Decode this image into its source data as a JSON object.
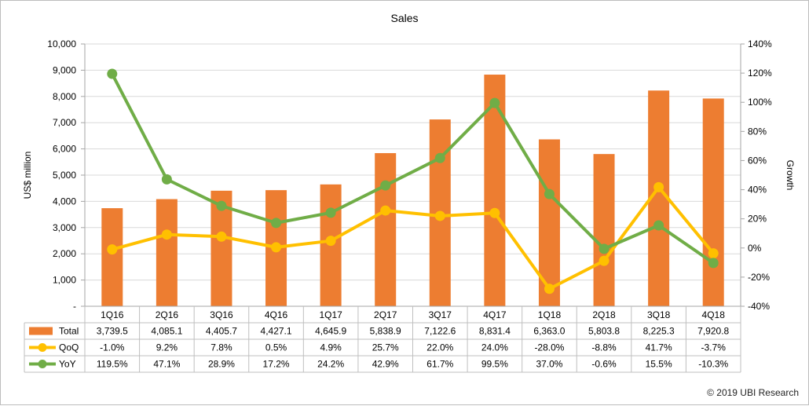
{
  "chart_data": {
    "type": "bar",
    "title": "Sales",
    "categories": [
      "1Q16",
      "2Q16",
      "3Q16",
      "4Q16",
      "1Q17",
      "2Q17",
      "3Q17",
      "4Q17",
      "1Q18",
      "2Q18",
      "3Q18",
      "4Q18"
    ],
    "left_axis": {
      "label": "US$ million",
      "ylim": [
        0,
        10000
      ],
      "ticks": [
        "-",
        "1,000",
        "2,000",
        "3,000",
        "4,000",
        "5,000",
        "6,000",
        "7,000",
        "8,000",
        "9,000",
        "10,000"
      ]
    },
    "right_axis": {
      "label": "Growth",
      "ylim": [
        -40,
        140
      ],
      "ticks": [
        "-40%",
        "-20%",
        "0%",
        "20%",
        "40%",
        "60%",
        "80%",
        "100%",
        "120%",
        "140%"
      ]
    },
    "series": [
      {
        "name": "Total",
        "type": "bar",
        "axis": "left",
        "color": "#ED7D31",
        "values": [
          3739.5,
          4085.1,
          4405.7,
          4427.1,
          4645.9,
          5838.9,
          7122.6,
          8831.4,
          6363.0,
          5803.8,
          8225.3,
          7920.8
        ],
        "labels": [
          "3,739.5",
          "4,085.1",
          "4,405.7",
          "4,427.1",
          "4,645.9",
          "5,838.9",
          "7,122.6",
          "8,831.4",
          "6,363.0",
          "5,803.8",
          "8,225.3",
          "7,920.8"
        ]
      },
      {
        "name": "QoQ",
        "type": "line",
        "axis": "right",
        "color": "#FFC000",
        "values": [
          -1.0,
          9.2,
          7.8,
          0.5,
          4.9,
          25.7,
          22.0,
          24.0,
          -28.0,
          -8.8,
          41.7,
          -3.7
        ],
        "labels": [
          "-1.0%",
          "9.2%",
          "7.8%",
          "0.5%",
          "4.9%",
          "25.7%",
          "22.0%",
          "24.0%",
          "-28.0%",
          "-8.8%",
          "41.7%",
          "-3.7%"
        ]
      },
      {
        "name": "YoY",
        "type": "line",
        "axis": "right",
        "color": "#70AD47",
        "values": [
          119.5,
          47.1,
          28.9,
          17.2,
          24.2,
          42.9,
          61.7,
          99.5,
          37.0,
          -0.6,
          15.5,
          -10.3
        ],
        "labels": [
          "119.5%",
          "47.1%",
          "28.9%",
          "17.2%",
          "24.2%",
          "42.9%",
          "61.7%",
          "99.5%",
          "37.0%",
          "-0.6%",
          "15.5%",
          "-10.3%"
        ]
      }
    ],
    "grid": true,
    "data_table": true
  },
  "copyright": "© 2019 UBI Research"
}
